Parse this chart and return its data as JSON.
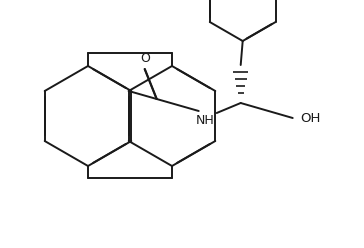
{
  "bg_color": "#ffffff",
  "line_color": "#1a1a1a",
  "lw": 1.4,
  "dbo": 0.008,
  "figsize": [
    3.64,
    2.48
  ],
  "dpi": 100,
  "xlim": [
    0,
    364
  ],
  "ylim": [
    0,
    248
  ]
}
